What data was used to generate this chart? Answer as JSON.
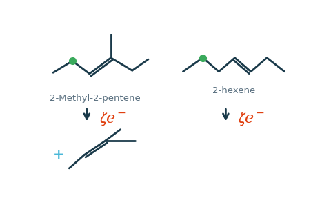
{
  "bg_color": "#ffffff",
  "molecule_color": "#1a3a4a",
  "green_dot_color": "#3aaa5c",
  "red_color": "#e04010",
  "blue_plus_color": "#4ab8d8",
  "label1": "2-Methyl-2-pentene",
  "label2": "2-hexene",
  "label_fontsize": 9.5,
  "label_color": "#5a7080",
  "lw": 2.0
}
